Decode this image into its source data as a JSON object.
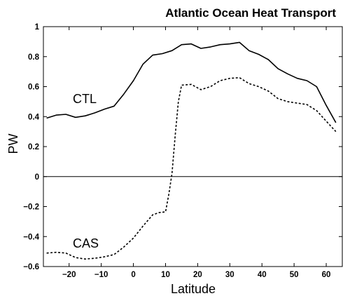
{
  "chart_data": {
    "type": "line",
    "title": "Atlantic Ocean Heat Transport",
    "xlabel": "Latitude",
    "ylabel": "PW",
    "xlim": [
      -28,
      65
    ],
    "ylim": [
      -0.6,
      1
    ],
    "xticks": [
      -20,
      -10,
      0,
      10,
      20,
      30,
      40,
      50,
      60
    ],
    "xtick_labels": [
      "−20",
      "−10",
      "0",
      "10",
      "20",
      "30",
      "40",
      "50",
      "60"
    ],
    "yticks": [
      -0.6,
      -0.4,
      -0.2,
      0,
      0.2,
      0.4,
      0.6,
      0.8,
      1
    ],
    "ytick_labels": [
      "−0.6",
      "−0.4",
      "−0.2",
      "0",
      "0.2",
      "0.4",
      "0.6",
      "0.8",
      "1"
    ],
    "zero_line": true,
    "grid": false,
    "series": [
      {
        "name": "CTL",
        "style": "solid",
        "x": [
          -27,
          -24,
          -21,
          -18,
          -15,
          -12,
          -9,
          -6,
          -3,
          0,
          3,
          6,
          9,
          12,
          15,
          18,
          21,
          24,
          27,
          30,
          33,
          36,
          39,
          42,
          45,
          48,
          51,
          54,
          57,
          60,
          63
        ],
        "values": [
          0.39,
          0.41,
          0.415,
          0.395,
          0.405,
          0.425,
          0.45,
          0.47,
          0.55,
          0.64,
          0.75,
          0.81,
          0.82,
          0.84,
          0.88,
          0.885,
          0.855,
          0.865,
          0.88,
          0.885,
          0.895,
          0.84,
          0.815,
          0.78,
          0.72,
          0.685,
          0.655,
          0.64,
          0.6,
          0.475,
          0.36
        ]
      },
      {
        "name": "CAS",
        "style": "dashed",
        "x": [
          -27,
          -24,
          -21,
          -18,
          -15,
          -12,
          -9,
          -6,
          -3,
          0,
          3,
          6,
          8,
          10,
          11,
          12,
          13,
          14,
          15,
          18,
          21,
          24,
          27,
          30,
          33,
          36,
          39,
          42,
          45,
          48,
          51,
          54,
          57,
          60,
          63
        ],
        "values": [
          -0.51,
          -0.505,
          -0.51,
          -0.54,
          -0.55,
          -0.545,
          -0.535,
          -0.52,
          -0.47,
          -0.41,
          -0.33,
          -0.255,
          -0.24,
          -0.235,
          -0.12,
          0.02,
          0.27,
          0.5,
          0.61,
          0.615,
          0.58,
          0.6,
          0.64,
          0.655,
          0.66,
          0.62,
          0.6,
          0.57,
          0.52,
          0.5,
          0.49,
          0.48,
          0.44,
          0.37,
          0.3
        ]
      }
    ]
  }
}
